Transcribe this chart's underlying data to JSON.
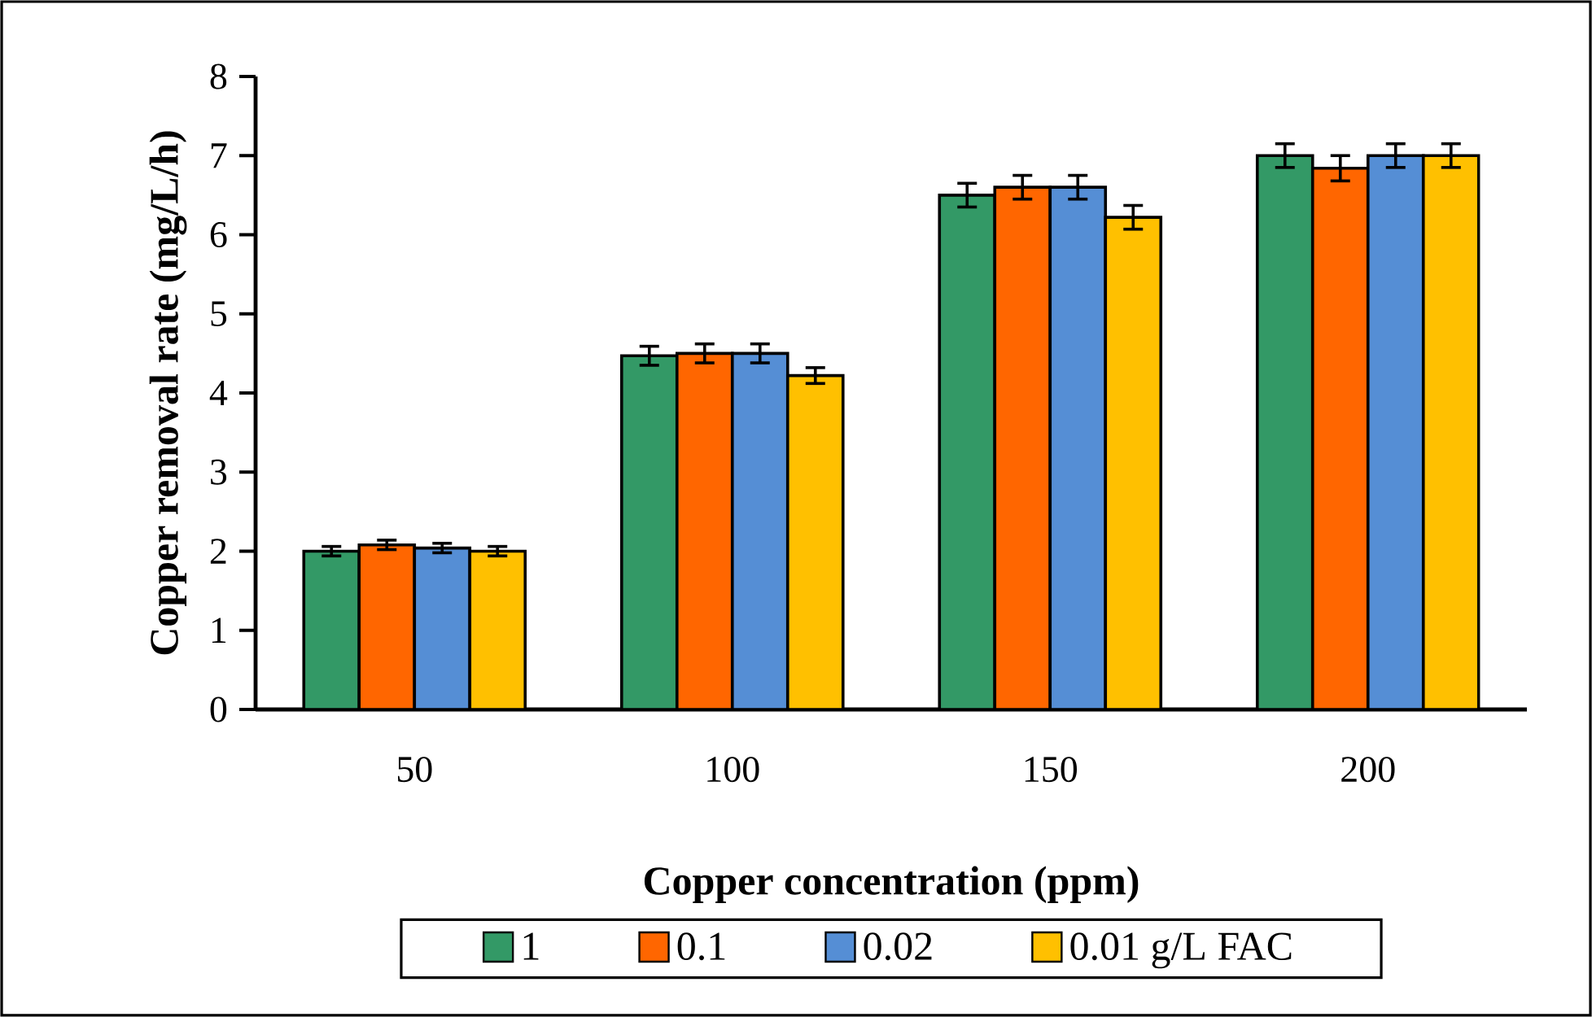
{
  "chart_data": {
    "type": "bar",
    "xlabel": "Copper concentration (ppm)",
    "ylabel": "Copper removal rate (mg/L/h)",
    "categories": [
      "50",
      "100",
      "150",
      "200"
    ],
    "series": [
      {
        "name": "1",
        "color": "#339966",
        "values": [
          2.0,
          4.47,
          6.5,
          7.0
        ],
        "errors": [
          0.06,
          0.12,
          0.15,
          0.15
        ]
      },
      {
        "name": "0.1",
        "color": "#ff6600",
        "values": [
          2.08,
          4.5,
          6.6,
          6.84
        ],
        "errors": [
          0.06,
          0.12,
          0.15,
          0.16
        ]
      },
      {
        "name": "0.02",
        "color": "#558ed5",
        "values": [
          2.04,
          4.5,
          6.6,
          7.0
        ],
        "errors": [
          0.06,
          0.12,
          0.15,
          0.15
        ]
      },
      {
        "name": "0.01 g/L FAC",
        "color": "#ffc000",
        "values": [
          2.0,
          4.22,
          6.22,
          7.0
        ],
        "errors": [
          0.06,
          0.1,
          0.15,
          0.15
        ]
      }
    ],
    "ylim": [
      0,
      8
    ],
    "yticks": [
      0,
      1,
      2,
      3,
      4,
      5,
      6,
      7,
      8
    ],
    "grid": false,
    "legend": "bottom"
  }
}
